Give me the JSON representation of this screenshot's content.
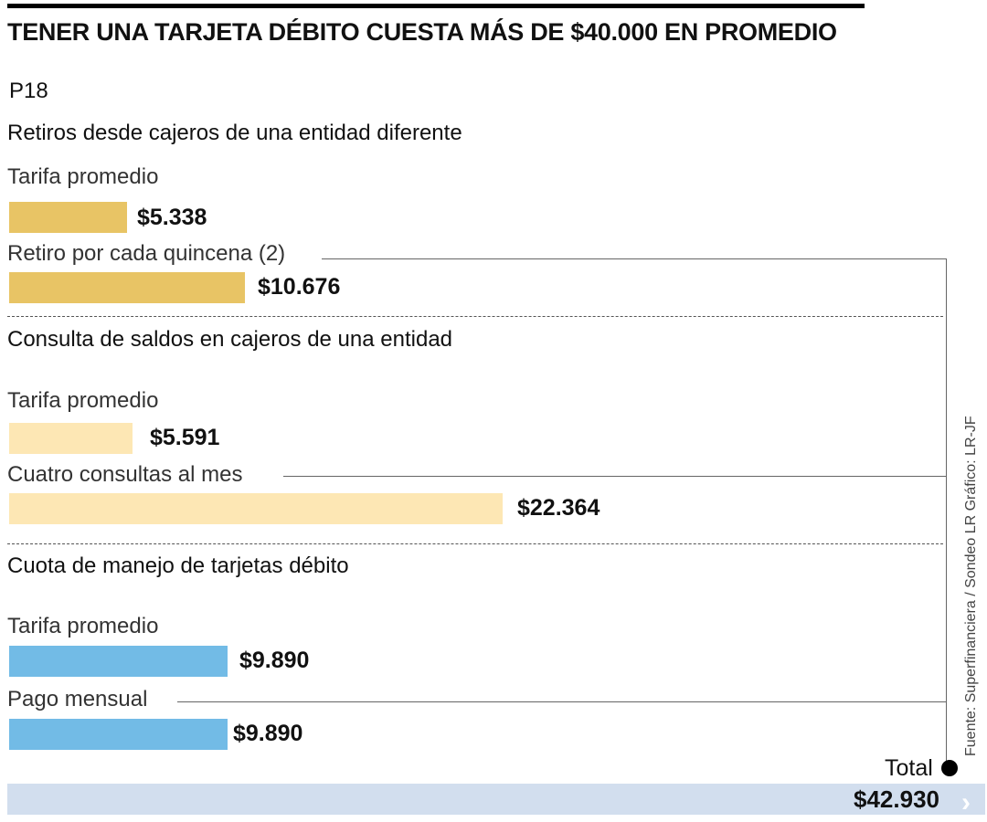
{
  "title": "TENER UNA TARJETA DÉBITO CUESTA MÁS DE $40.000 EN PROMEDIO",
  "code": "P18",
  "side_credit": "Fuente: Superfinanciera / Sondeo LR     Gráfico: LR-JF",
  "colors": {
    "gold": "#e8c465",
    "cream": "#fde7b4",
    "blue": "#72bbe6",
    "total": "#d2deee"
  },
  "chart_data": {
    "type": "bar",
    "orientation": "horizontal",
    "title": "TENER UNA TARJETA DÉBITO CUESTA MÁS DE $40.000 EN PROMEDIO",
    "groups": [
      {
        "name": "Retiros desde cajeros de una entidad diferente",
        "items": [
          {
            "label": "Tarifa promedio",
            "value": 5338,
            "display": "$5.338"
          },
          {
            "label": "Retiro por cada quincena (2)",
            "value": 10676,
            "display": "$10.676"
          }
        ]
      },
      {
        "name": "Consulta de saldos en cajeros de una entidad",
        "items": [
          {
            "label": "Tarifa promedio",
            "value": 5591,
            "display": "$5.591"
          },
          {
            "label": "Cuatro consultas al mes",
            "value": 22364,
            "display": "$22.364"
          }
        ]
      },
      {
        "name": "Cuota de manejo de tarjetas débito",
        "items": [
          {
            "label": "Tarifa promedio",
            "value": 9890,
            "display": "$9.890"
          },
          {
            "label": "Pago mensual",
            "value": 9890,
            "display": "$9.890"
          }
        ]
      }
    ],
    "total": {
      "label": "Total",
      "value": 42930,
      "display": "$42.930"
    }
  }
}
